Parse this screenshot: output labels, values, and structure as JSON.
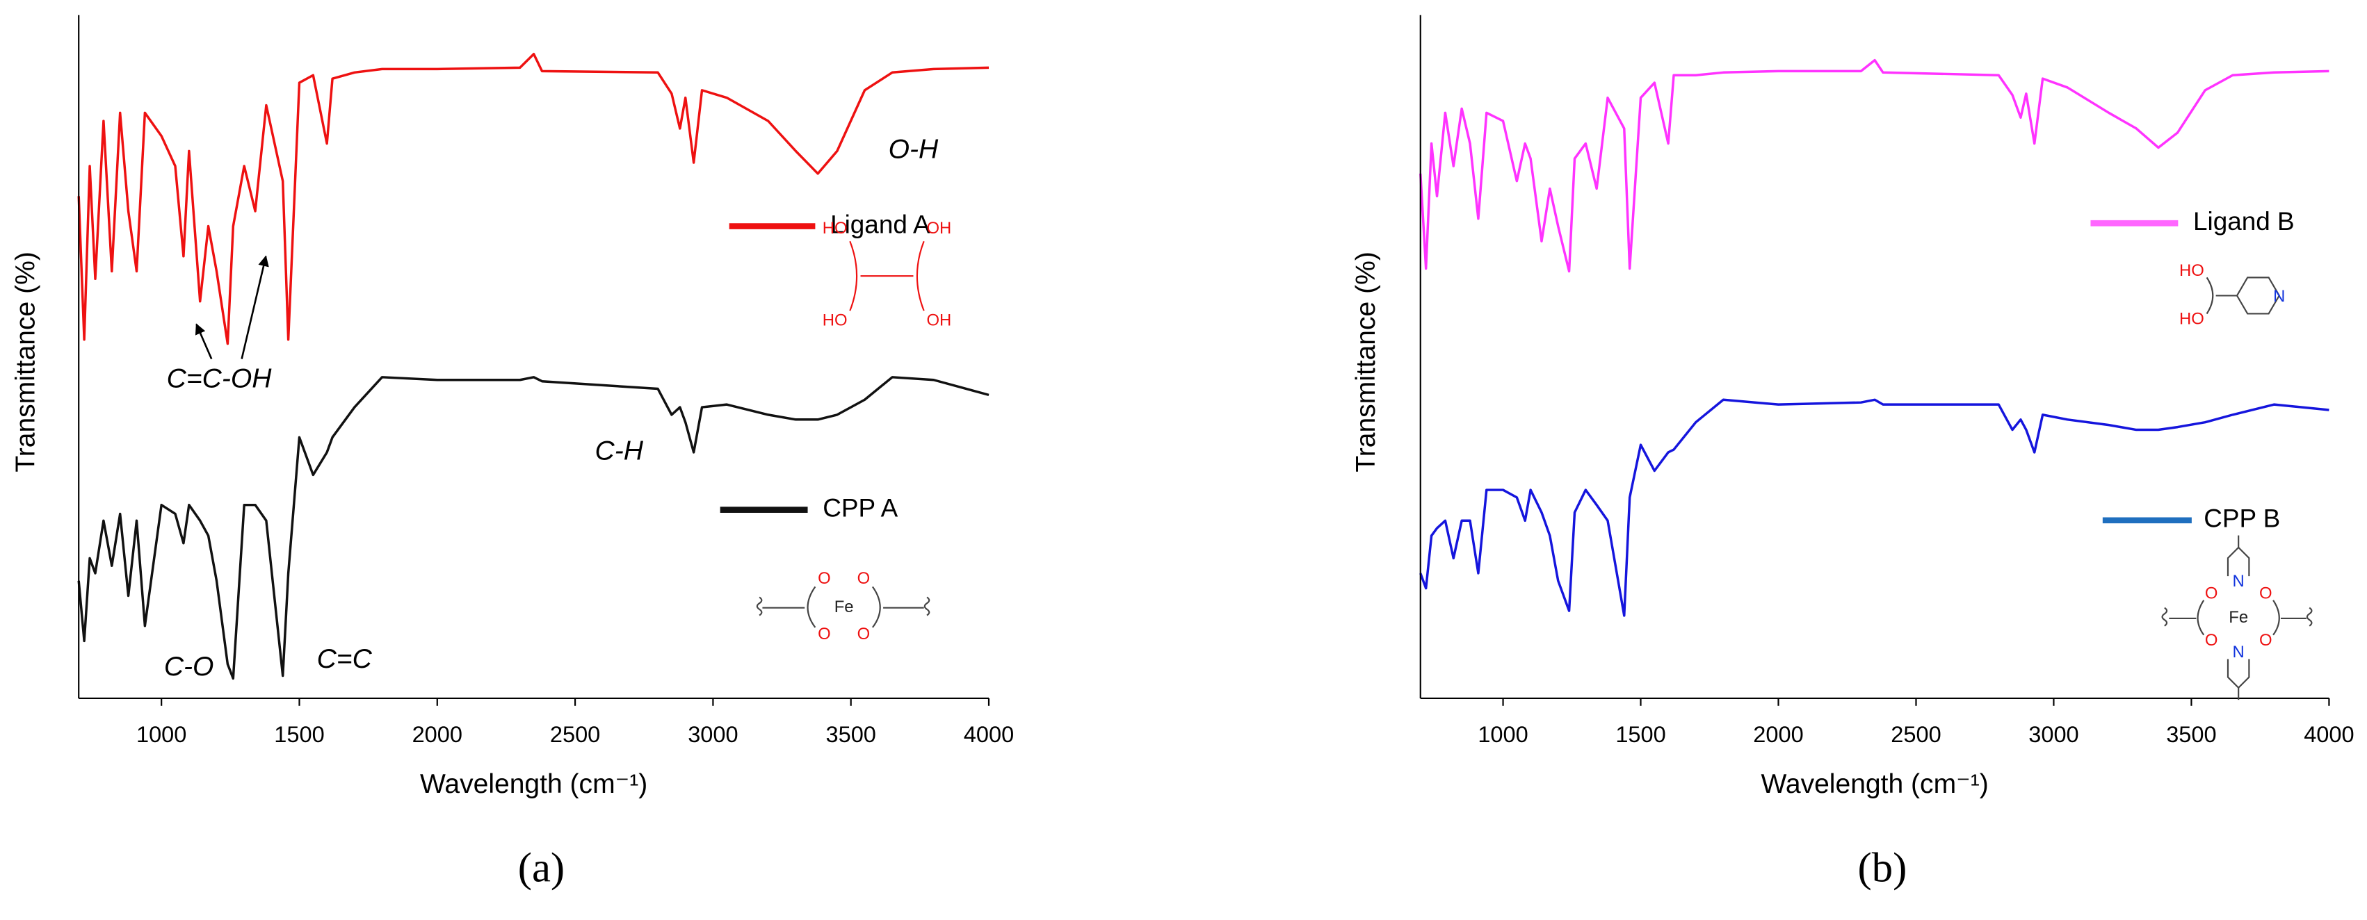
{
  "chart_data": [
    {
      "type": "line",
      "panel_label": "(a)",
      "x_label": "Wavelength (cm⁻¹)",
      "y_label": "Transmittance (%)",
      "xlim": [
        700,
        4000
      ],
      "xticks": [
        1000,
        1500,
        2000,
        2500,
        3000,
        3500,
        4000
      ],
      "ylim": [
        0,
        100
      ],
      "x": [
        700,
        720,
        740,
        760,
        790,
        820,
        850,
        880,
        910,
        940,
        1000,
        1050,
        1080,
        1100,
        1140,
        1170,
        1200,
        1240,
        1260,
        1300,
        1340,
        1380,
        1440,
        1460,
        1500,
        1550,
        1600,
        1620,
        1700,
        1800,
        2000,
        2300,
        2350,
        2380,
        2800,
        2850,
        2880,
        2900,
        2930,
        2960,
        3050,
        3200,
        3300,
        3380,
        3450,
        3550,
        3650,
        3800,
        4000
      ],
      "series": [
        {
          "name": "Ligand A",
          "color": "#ee1111",
          "legend_color": "#ee1111",
          "values": [
            73.5,
            52.5,
            77.9,
            61.4,
            84.5,
            62.5,
            85.7,
            71.3,
            62.5,
            85.7,
            82.3,
            77.9,
            64.7,
            80.1,
            58.1,
            69.1,
            62.5,
            51.9,
            69.1,
            77.9,
            71.3,
            86.8,
            75.7,
            52.5,
            90.1,
            91.2,
            81.2,
            90.7,
            91.6,
            92.1,
            92.1,
            92.3,
            94.3,
            91.8,
            91.6,
            88.5,
            83.4,
            87.9,
            78.4,
            89,
            87.9,
            84.5,
            80.1,
            76.8,
            80.1,
            89,
            91.6,
            92.1,
            92.3
          ]
        },
        {
          "name": "CPP A",
          "color": "#111111",
          "legend_color": "#111111",
          "values": [
            17.2,
            8.4,
            20.5,
            18.3,
            26,
            19.4,
            27,
            15,
            26,
            10.6,
            28.3,
            27,
            22.7,
            28.3,
            26,
            23.8,
            17.2,
            5,
            2.9,
            28.3,
            28.3,
            26,
            3.3,
            18.3,
            38.2,
            32.7,
            36,
            38.2,
            42.6,
            47,
            46.6,
            46.6,
            47,
            46.4,
            45.3,
            41.5,
            42.6,
            40.4,
            36,
            42.6,
            43,
            41.5,
            40.8,
            40.8,
            41.5,
            43.7,
            47,
            46.6,
            44.4
          ]
        }
      ],
      "annotations": [
        "O-H",
        "C=C-OH",
        "C-H",
        "C-O",
        "C=C"
      ],
      "structures": [
        {
          "atoms": [
            "HO",
            "HO",
            "OH",
            "OH"
          ]
        },
        {
          "atoms": [
            "O",
            "O",
            "O",
            "O",
            "Fe"
          ]
        }
      ]
    },
    {
      "type": "line",
      "panel_label": "(b)",
      "x_label": "Wavelength (cm⁻¹)",
      "y_label": "Transmittance (%)",
      "xlim": [
        700,
        4000
      ],
      "xticks": [
        1000,
        1500,
        2000,
        2500,
        3000,
        3500,
        4000
      ],
      "ylim": [
        0,
        100
      ],
      "x": [
        700,
        720,
        740,
        760,
        790,
        820,
        850,
        880,
        910,
        940,
        1000,
        1050,
        1080,
        1100,
        1140,
        1170,
        1200,
        1240,
        1260,
        1300,
        1340,
        1380,
        1440,
        1460,
        1500,
        1550,
        1600,
        1620,
        1700,
        1800,
        2000,
        2300,
        2350,
        2380,
        2800,
        2850,
        2880,
        2900,
        2930,
        2960,
        3050,
        3200,
        3300,
        3380,
        3450,
        3550,
        3650,
        3800,
        4000
      ],
      "series": [
        {
          "name": "Ligand B",
          "color": "#ff33ff",
          "legend_color": "#ff66ff",
          "values": [
            76.8,
            62.9,
            81.2,
            73.5,
            85.7,
            77.9,
            86.3,
            81.2,
            70.2,
            85.7,
            84.5,
            75.7,
            81.2,
            79,
            66.9,
            74.6,
            69.1,
            62.5,
            79,
            81.2,
            74.6,
            87.9,
            83.4,
            62.9,
            87.9,
            90.1,
            81.2,
            91.2,
            91.2,
            91.6,
            91.8,
            91.8,
            93.4,
            91.6,
            91.2,
            88.3,
            85,
            88.5,
            81.2,
            90.7,
            89.4,
            85.7,
            83.4,
            80.6,
            82.8,
            89,
            91.2,
            91.6,
            91.8
          ]
        },
        {
          "name": "CPP B",
          "color": "#1515dd",
          "legend_color": "#1f6fbf",
          "values": [
            18.3,
            16.1,
            23.8,
            24.9,
            26,
            20.5,
            26,
            26,
            18.3,
            30.5,
            30.5,
            29.4,
            26,
            30.5,
            27.2,
            23.8,
            17.2,
            12.8,
            27.2,
            30.5,
            28.3,
            26,
            12.1,
            29.4,
            37.1,
            33.3,
            36,
            36.4,
            40.4,
            43.7,
            43,
            43.3,
            43.7,
            43,
            43,
            39.3,
            40.8,
            39.3,
            36,
            41.5,
            40.8,
            40,
            39.3,
            39.3,
            39.7,
            40.4,
            41.5,
            43,
            42.2
          ]
        }
      ],
      "structures": [
        {
          "atoms": [
            "HO",
            "HO",
            "N"
          ]
        },
        {
          "atoms": [
            "O",
            "O",
            "O",
            "O",
            "Fe",
            "N",
            "N"
          ]
        }
      ]
    }
  ]
}
